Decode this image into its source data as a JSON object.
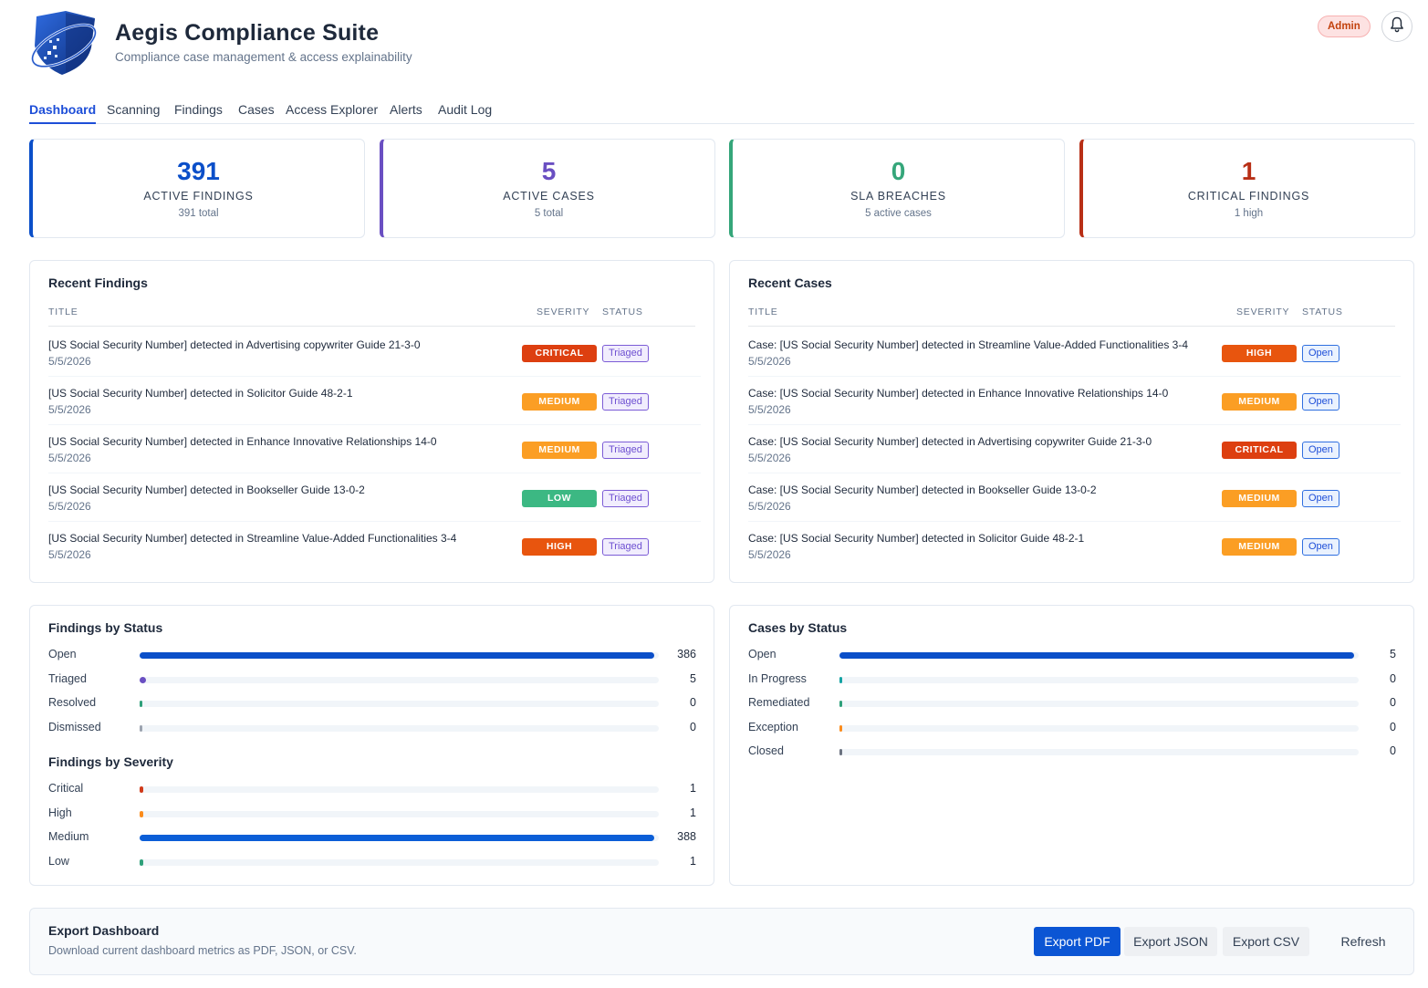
{
  "app": {
    "title": "Aegis Compliance Suite",
    "subtitle": "Compliance case management & access explainability",
    "role_badge": "Admin"
  },
  "tabs": [
    {
      "label": "Dashboard",
      "active": true
    },
    {
      "label": "Scanning"
    },
    {
      "label": "Findings"
    },
    {
      "label": "Cases"
    },
    {
      "label": "Access Explorer"
    },
    {
      "label": "Alerts"
    },
    {
      "label": "Audit Log"
    }
  ],
  "kpis": [
    {
      "value": "391",
      "label": "ACTIVE FINDINGS",
      "sub": "391 total",
      "color": "#0b4fc9"
    },
    {
      "value": "5",
      "label": "ACTIVE CASES",
      "sub": "5 total",
      "color": "#6a4fc2"
    },
    {
      "value": "0",
      "label": "SLA BREACHES",
      "sub": "5 active cases",
      "color": "#35a67a"
    },
    {
      "value": "1",
      "label": "CRITICAL FINDINGS",
      "sub": "1 high",
      "color": "#b82f16"
    }
  ],
  "recent_findings": {
    "title": "Recent Findings",
    "columns": [
      "TITLE",
      "SEVERITY",
      "STATUS"
    ],
    "rows": [
      {
        "title": "[US Social Security Number] detected in Advertising copywriter Guide 21-3-0",
        "date": "5/5/2026",
        "severity": "CRITICAL",
        "status": "Triaged"
      },
      {
        "title": "[US Social Security Number] detected in Solicitor Guide 48-2-1",
        "date": "5/5/2026",
        "severity": "MEDIUM",
        "status": "Triaged"
      },
      {
        "title": "[US Social Security Number] detected in Enhance Innovative Relationships 14-0",
        "date": "5/5/2026",
        "severity": "MEDIUM",
        "status": "Triaged"
      },
      {
        "title": "[US Social Security Number] detected in Bookseller Guide 13-0-2",
        "date": "5/5/2026",
        "severity": "LOW",
        "status": "Triaged"
      },
      {
        "title": "[US Social Security Number] detected in Streamline Value-Added Functionalities 3-4",
        "date": "5/5/2026",
        "severity": "HIGH",
        "status": "Triaged"
      }
    ]
  },
  "recent_cases": {
    "title": "Recent Cases",
    "columns": [
      "TITLE",
      "SEVERITY",
      "STATUS"
    ],
    "rows": [
      {
        "title": "Case: [US Social Security Number] detected in Streamline Value-Added Functionalities 3-4",
        "date": "5/5/2026",
        "severity": "HIGH",
        "status": "Open"
      },
      {
        "title": "Case: [US Social Security Number] detected in Enhance Innovative Relationships 14-0",
        "date": "5/5/2026",
        "severity": "MEDIUM",
        "status": "Open"
      },
      {
        "title": "Case: [US Social Security Number] detected in Advertising copywriter Guide 21-3-0",
        "date": "5/5/2026",
        "severity": "CRITICAL",
        "status": "Open"
      },
      {
        "title": "Case: [US Social Security Number] detected in Bookseller Guide 13-0-2",
        "date": "5/5/2026",
        "severity": "MEDIUM",
        "status": "Open"
      },
      {
        "title": "Case: [US Social Security Number] detected in Solicitor Guide 48-2-1",
        "date": "5/5/2026",
        "severity": "MEDIUM",
        "status": "Open"
      }
    ]
  },
  "severity_colors": {
    "CRITICAL": "#dd3f10",
    "HIGH": "#e8550e",
    "MEDIUM": "#fb9e24",
    "LOW": "#3cb883"
  },
  "findings_by_status": {
    "title": "Findings by Status",
    "max": 386,
    "items": [
      {
        "label": "Open",
        "count": 386,
        "color": "#0b4fc9"
      },
      {
        "label": "Triaged",
        "count": 5,
        "color": "#6a4fc2"
      },
      {
        "label": "Resolved",
        "count": 0,
        "color": "#2ea07a"
      },
      {
        "label": "Dismissed",
        "count": 0,
        "color": "#9ca3af"
      }
    ]
  },
  "findings_by_severity": {
    "title": "Findings by Severity",
    "max": 388,
    "items": [
      {
        "label": "Critical",
        "count": 1,
        "color": "#d13b1a"
      },
      {
        "label": "High",
        "count": 1,
        "color": "#fb8c1c"
      },
      {
        "label": "Medium",
        "count": 388,
        "color": "#0b5ed7"
      },
      {
        "label": "Low",
        "count": 1,
        "color": "#2ea07a"
      }
    ]
  },
  "cases_by_status": {
    "title": "Cases by Status",
    "max": 5,
    "items": [
      {
        "label": "Open",
        "count": 5,
        "color": "#0b4fc9"
      },
      {
        "label": "In Progress",
        "count": 0,
        "color": "#14a3a3"
      },
      {
        "label": "Remediated",
        "count": 0,
        "color": "#2ea07a"
      },
      {
        "label": "Exception",
        "count": 0,
        "color": "#fb8c1c"
      },
      {
        "label": "Closed",
        "count": 0,
        "color": "#6b7280"
      }
    ]
  },
  "export": {
    "title": "Export Dashboard",
    "description": "Download current dashboard metrics as PDF, JSON, or CSV.",
    "buttons": [
      "Export PDF",
      "Export JSON",
      "Export CSV",
      "Refresh"
    ]
  },
  "icons": {
    "logo": "shield-logo-icon",
    "bell": "bell-icon"
  }
}
